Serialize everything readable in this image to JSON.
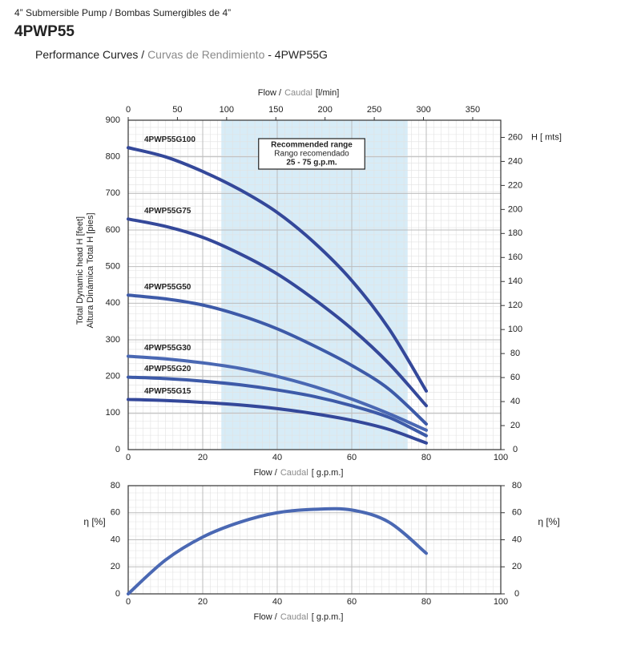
{
  "header": {
    "subtitle": "4” Submersible Pump / Bombas Sumergibles de 4”",
    "model": "4PWP55",
    "heading": [
      "Performance Curves /",
      "Curvas de Rendimiento",
      "- 4PWP55G"
    ]
  },
  "chart_data": [
    {
      "type": "line",
      "x_label": [
        "Flow /",
        "Caudal",
        "[ g.p.m.]"
      ],
      "x2_label": [
        "Flow /",
        "Caudal",
        "[l/min]"
      ],
      "y_label": [
        "Total Dynamic head H [feet]",
        "Altura Dinámica Total H [pies]"
      ],
      "y2_label": "H [ mts]",
      "x": [
        0,
        10,
        20,
        30,
        40,
        50,
        60,
        70,
        80
      ],
      "series": [
        {
          "name": "4PWP55G100",
          "color": "#34489a",
          "values": [
            825,
            800,
            760,
            710,
            648,
            565,
            462,
            330,
            160
          ]
        },
        {
          "name": "4PWP55G75",
          "color": "#34489a",
          "values": [
            630,
            610,
            580,
            535,
            480,
            410,
            330,
            235,
            120
          ]
        },
        {
          "name": "4PWP55G50",
          "color": "#3d5aa8",
          "values": [
            422,
            412,
            395,
            367,
            330,
            283,
            230,
            165,
            70
          ]
        },
        {
          "name": "4PWP55G30",
          "color": "#4a68b3",
          "values": [
            255,
            248,
            237,
            222,
            200,
            172,
            138,
            98,
            53
          ]
        },
        {
          "name": "4PWP55G20",
          "color": "#3d5aa8",
          "values": [
            198,
            194,
            187,
            177,
            163,
            145,
            120,
            88,
            38
          ]
        },
        {
          "name": "4PWP55G15",
          "color": "#34489a",
          "values": [
            137,
            134,
            129,
            122,
            112,
            98,
            80,
            55,
            18
          ]
        }
      ],
      "xlim": [
        0,
        100
      ],
      "xticks": [
        0,
        20,
        40,
        60,
        80,
        100
      ],
      "x2lim": [
        0,
        378.54
      ],
      "x2ticks": [
        0,
        50,
        100,
        150,
        200,
        250,
        300,
        350
      ],
      "ylim": [
        0,
        900
      ],
      "yticks": [
        0,
        100,
        200,
        300,
        400,
        500,
        600,
        700,
        800,
        900
      ],
      "y2lim": [
        0,
        274.32
      ],
      "y2ticks": [
        0,
        20,
        40,
        60,
        80,
        100,
        120,
        140,
        160,
        180,
        200,
        220,
        240,
        260
      ],
      "shade": [
        25,
        75
      ],
      "shade_color": "#d7ecf7",
      "annotation": [
        "Recommended range",
        "Rango recomendado",
        "25 - 75 g.p.m."
      ],
      "grid": true
    },
    {
      "type": "line",
      "x_label": [
        "Flow /",
        "Caudal",
        "[ g.p.m.]"
      ],
      "y_label": "η [%]",
      "x": [
        0,
        10,
        20,
        30,
        40,
        50,
        60,
        70,
        80
      ],
      "series": [
        {
          "color": "#4a68b3",
          "values": [
            0,
            25,
            42,
            53,
            60,
            62.5,
            62,
            53,
            30
          ]
        }
      ],
      "xlim": [
        0,
        100
      ],
      "xticks": [
        0,
        20,
        40,
        60,
        80,
        100
      ],
      "ylim": [
        0,
        80
      ],
      "yticks": [
        0,
        20,
        40,
        60,
        80
      ],
      "grid": true
    }
  ]
}
